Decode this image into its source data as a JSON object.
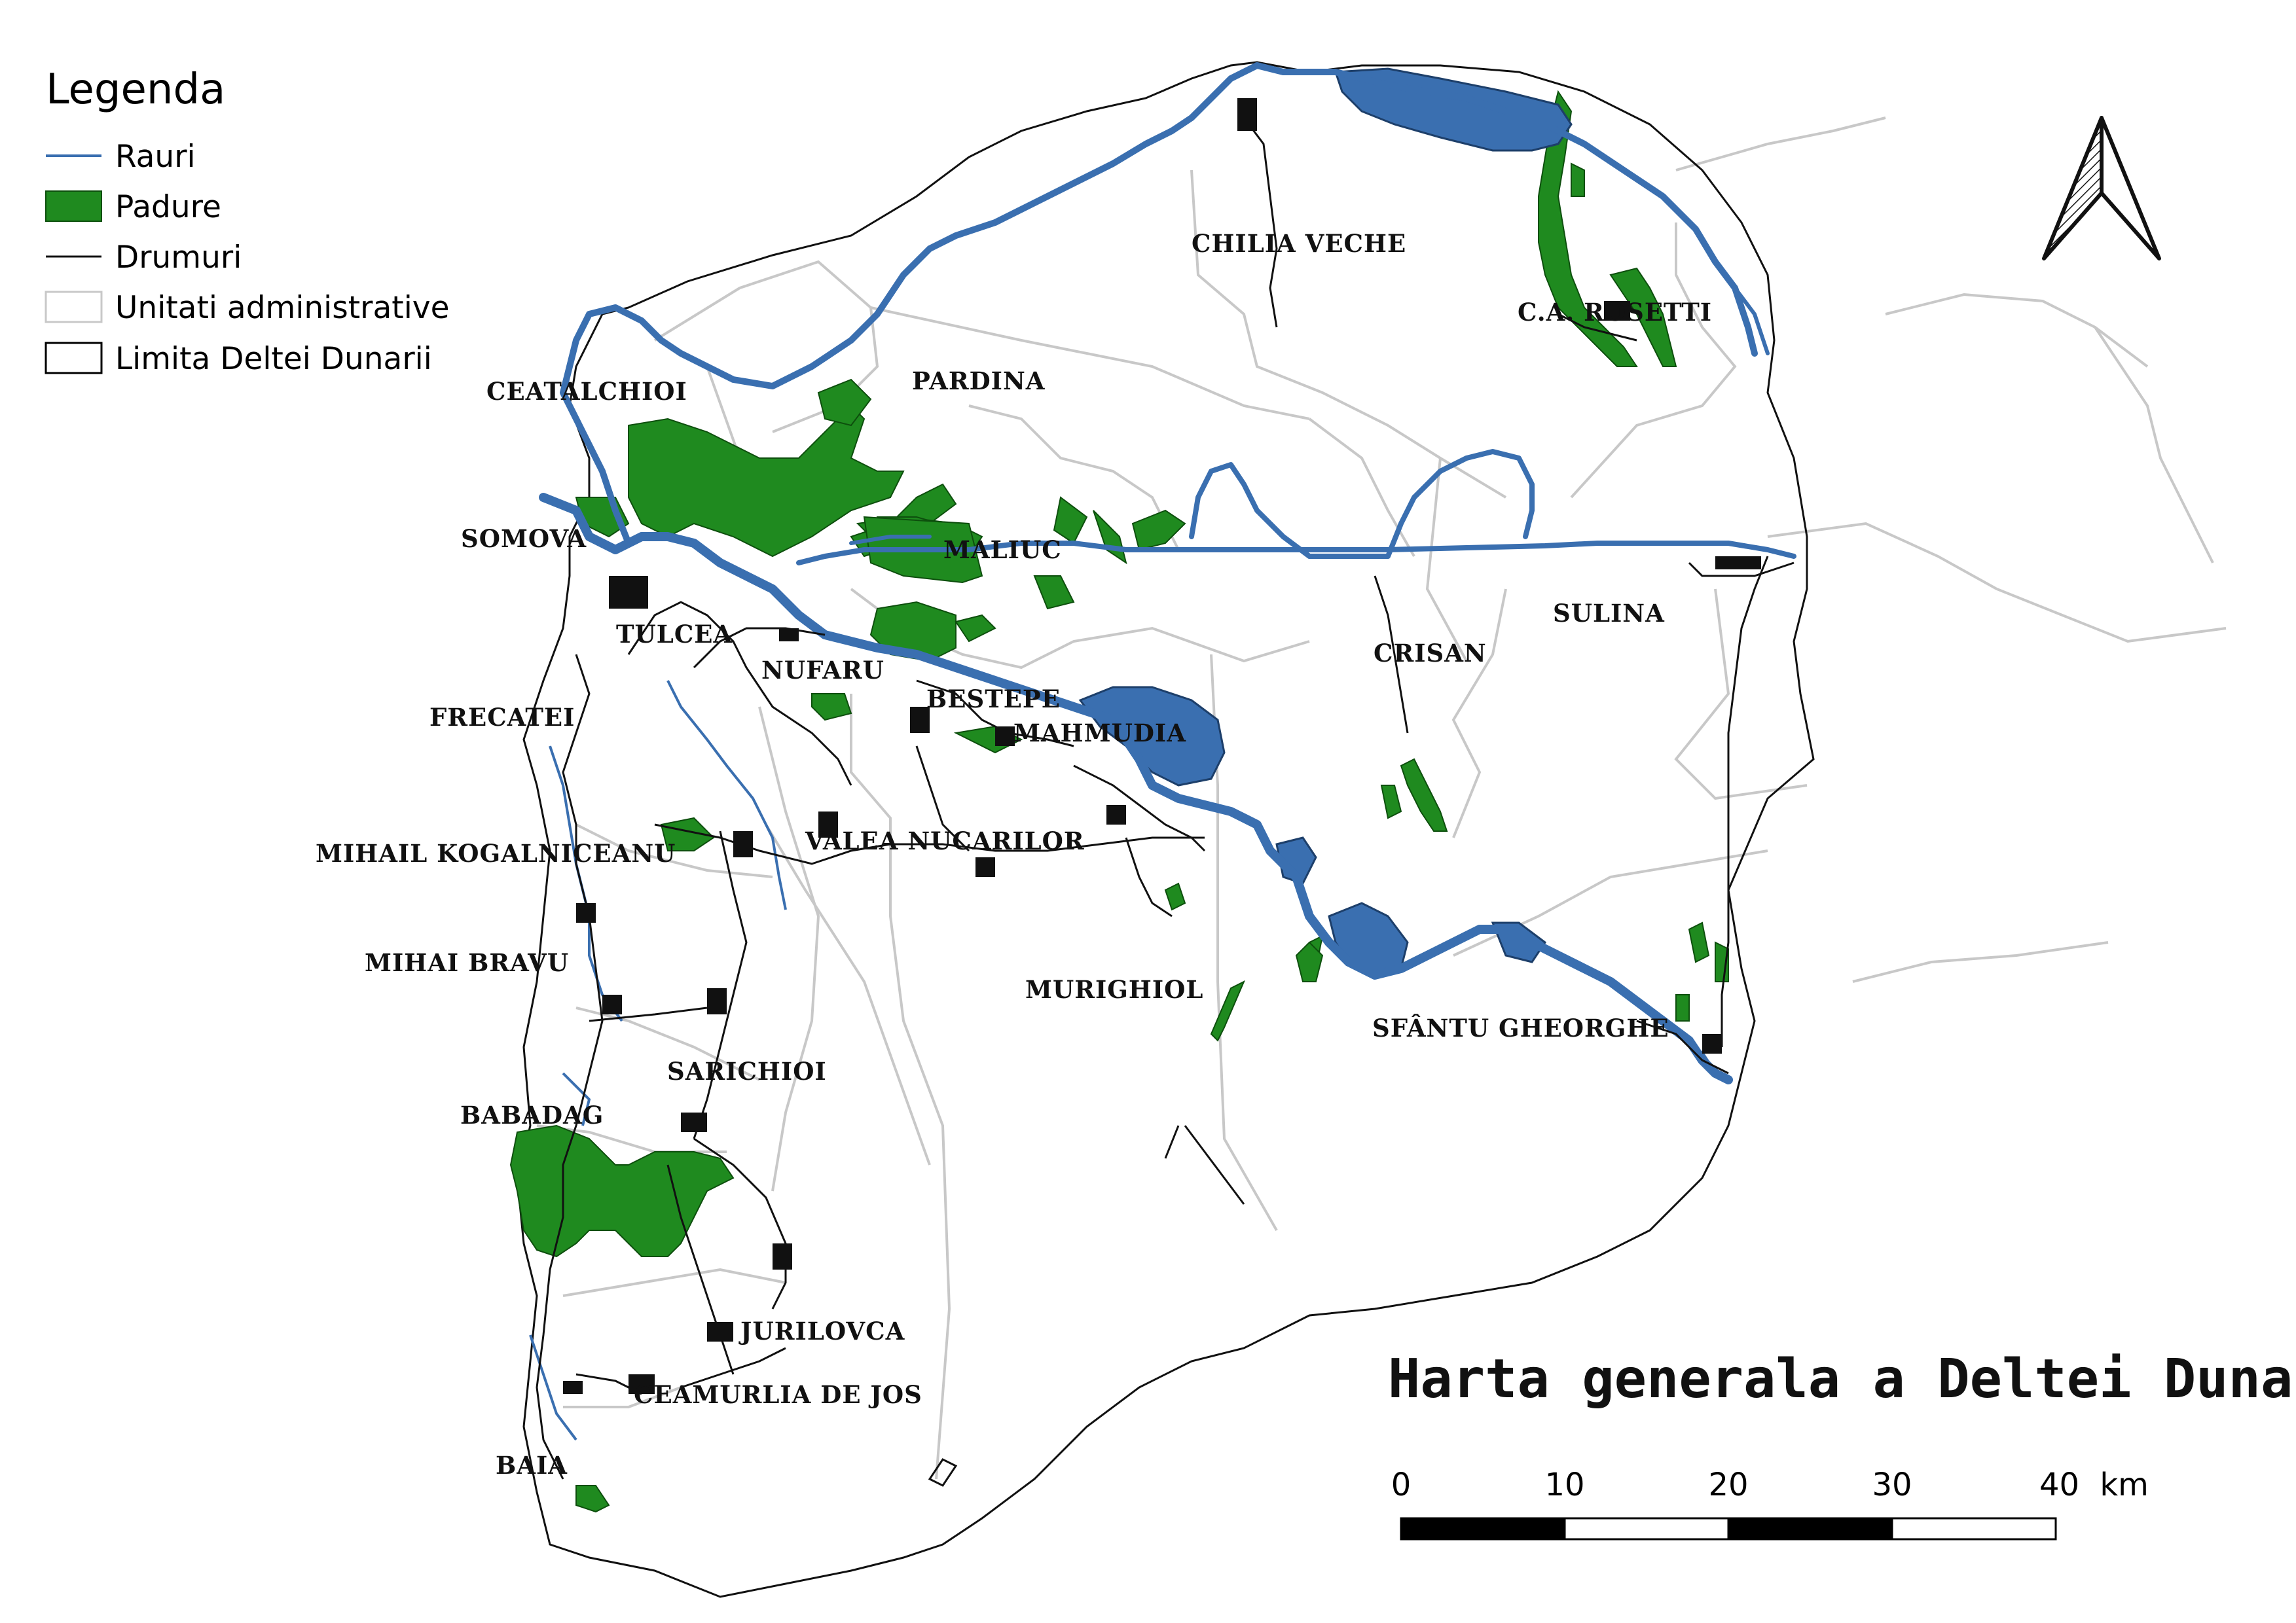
{
  "title": "Harta generala a Deltei Dunarii",
  "legend": {
    "title": "Legenda",
    "items": [
      {
        "name": "rivers",
        "label": "Rauri",
        "color": "#3a6fb0"
      },
      {
        "name": "forest",
        "label": "Padure",
        "color": "#1f8a1f"
      },
      {
        "name": "roads",
        "label": "Drumuri",
        "color": "#111111"
      },
      {
        "name": "admin-units",
        "label": "Unitati administrative",
        "color": "#c8c8c8"
      },
      {
        "name": "delta-limit",
        "label": "Limita Deltei Dunarii",
        "color": "#000000"
      }
    ]
  },
  "places": [
    {
      "name": "CHILIA VECHE"
    },
    {
      "name": "C.A. ROSETTI"
    },
    {
      "name": "PARDINA"
    },
    {
      "name": "CEATALCHIOI"
    },
    {
      "name": "SOMOVA"
    },
    {
      "name": "MALIUC"
    },
    {
      "name": "TULCEA"
    },
    {
      "name": "NUFARU"
    },
    {
      "name": "SULINA"
    },
    {
      "name": "CRISAN"
    },
    {
      "name": "BESTEPE"
    },
    {
      "name": "MAHMUDIA"
    },
    {
      "name": "FRECATEI"
    },
    {
      "name": "MIHAIL KOGALNICEANU"
    },
    {
      "name": "VALEA NUCARILOR"
    },
    {
      "name": "MIHAI BRAVU"
    },
    {
      "name": "MURIGHIOL"
    },
    {
      "name": "SFÂNTU GHEORGHE"
    },
    {
      "name": "SARICHIOI"
    },
    {
      "name": "BABADAG"
    },
    {
      "name": "JURILOVCA"
    },
    {
      "name": "CEAMURLIA DE JOS"
    },
    {
      "name": "BAIA"
    }
  ],
  "scale_bar": {
    "ticks": [
      "0",
      "10",
      "20",
      "30"
    ],
    "last": "40",
    "unit": "km"
  },
  "north_arrow_icon": "north-arrow-icon",
  "colors": {
    "water": "#3a6fb0",
    "forest": "#1f8a1f",
    "road": "#111111",
    "admin": "#c8c8c8"
  }
}
